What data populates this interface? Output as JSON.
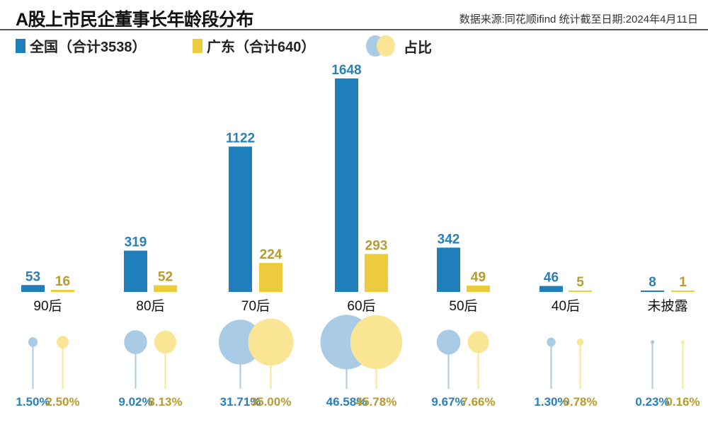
{
  "header": {
    "title": "A股上市民企董事长年龄段分布",
    "source": "数据来源:同花顺ifind  统计截至日期:2024年4月11日"
  },
  "legend": [
    {
      "label": "全国（合计3538）",
      "color": "#1f7fba"
    },
    {
      "label": "广东（合计640）",
      "color": "#eccb3c"
    },
    {
      "label": "占比",
      "colors": [
        "#aacbe6",
        "#f9e593"
      ]
    }
  ],
  "colors": {
    "blue": "#1f7fba",
    "yellow": "#eccb3c",
    "blue_light": "#aacbe6",
    "yellow_light": "#f9e593",
    "blue_text": "#2a7fb8",
    "yellow_text": "#b99a2c"
  },
  "chart_data": {
    "type": "bar",
    "categories": [
      "90后",
      "80后",
      "70后",
      "60后",
      "50后",
      "40后",
      "未披露"
    ],
    "series": [
      {
        "name": "全国（合计3538）",
        "values": [
          53,
          319,
          1122,
          1648,
          342,
          46,
          8
        ],
        "share_pct": [
          "1.50%",
          "9.02%",
          "31.71%",
          "46.58%",
          "9.67%",
          "1.30%",
          "0.23%"
        ]
      },
      {
        "name": "广东（合计640）",
        "values": [
          16,
          52,
          224,
          293,
          49,
          5,
          1
        ],
        "share_pct": [
          "2.50%",
          "8.13%",
          "35.00%",
          "45.78%",
          "7.66%",
          "0.78%",
          "0.16%"
        ]
      }
    ],
    "share_display": "bubble",
    "ylim": [
      0,
      1648
    ],
    "grid": false
  }
}
